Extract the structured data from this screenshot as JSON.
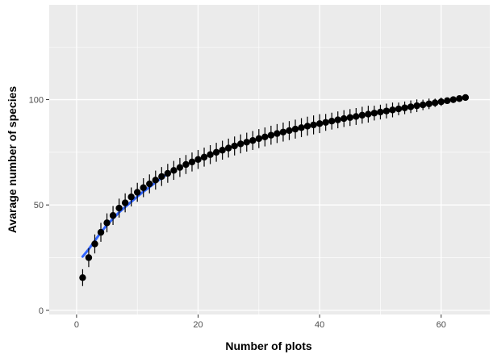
{
  "chart_data": {
    "type": "scatter",
    "title": "",
    "xlabel": "Number of plots",
    "ylabel": "Avarage number of species",
    "xlim": [
      -4.5,
      68
    ],
    "ylim": [
      -2,
      145
    ],
    "x_ticks": [
      0,
      20,
      40,
      60
    ],
    "x_tick_labels": [
      "0",
      "20",
      "40",
      "60"
    ],
    "y_ticks": [
      0,
      50,
      100
    ],
    "y_tick_labels": [
      "0",
      "50",
      "100"
    ],
    "grid": true,
    "legend": "none",
    "series": [
      {
        "kind": "points_with_error_bars",
        "x": [
          1,
          2,
          3,
          4,
          5,
          6,
          7,
          8,
          9,
          10,
          11,
          12,
          13,
          14,
          15,
          16,
          17,
          18,
          19,
          20,
          21,
          22,
          23,
          24,
          25,
          26,
          27,
          28,
          29,
          30,
          31,
          32,
          33,
          34,
          35,
          36,
          37,
          38,
          39,
          40,
          41,
          42,
          43,
          44,
          45,
          46,
          47,
          48,
          49,
          50,
          51,
          52,
          53,
          54,
          55,
          56,
          57,
          58,
          59,
          60,
          61,
          62,
          63,
          64
        ],
        "y": [
          15.5,
          25,
          31.5,
          37,
          41.5,
          45,
          48.5,
          51,
          53.8,
          56,
          58.2,
          60,
          61.8,
          63.5,
          65,
          66.4,
          67.8,
          69.2,
          70.4,
          71.6,
          72.7,
          73.9,
          75,
          76,
          77,
          78,
          79,
          79.8,
          80.6,
          81.5,
          82.3,
          83.1,
          83.9,
          84.6,
          85.3,
          86,
          86.7,
          87.4,
          88,
          88.6,
          89.2,
          89.8,
          90.4,
          91,
          91.5,
          92,
          92.6,
          93.1,
          93.6,
          94.1,
          94.6,
          95.1,
          95.6,
          96.1,
          96.6,
          97.1,
          97.5,
          98,
          98.5,
          99,
          99.5,
          100,
          100.5,
          101
        ],
        "error": [
          4,
          4.5,
          4.5,
          4.5,
          4.5,
          4.5,
          4.5,
          4.5,
          4.5,
          4.5,
          4.5,
          4.5,
          4.5,
          4.5,
          4.5,
          4.5,
          4.5,
          4.5,
          4.5,
          4.5,
          4.5,
          4.5,
          4.5,
          4.5,
          4.5,
          4.5,
          4.5,
          4.5,
          4.5,
          4.5,
          4.5,
          4.5,
          4.5,
          4.5,
          4.5,
          4.5,
          4.5,
          4.5,
          4.5,
          4.5,
          4,
          4,
          4,
          4,
          4,
          4,
          4,
          4,
          3.5,
          3.5,
          3.5,
          3.5,
          3,
          3,
          3,
          3,
          2.5,
          2.5,
          2,
          2,
          1.5,
          1.5,
          1,
          1
        ]
      },
      {
        "kind": "fitted_curve",
        "x": [
          1,
          2,
          3,
          4,
          5,
          6,
          7,
          8,
          9,
          10,
          11,
          12,
          13,
          14,
          15
        ],
        "y": [
          25.5,
          29,
          33,
          37,
          40.5,
          43.5,
          46.5,
          49,
          51.5,
          54,
          56.3,
          58.5,
          60.7,
          62.8,
          64.8
        ]
      }
    ],
    "colors": {
      "panel_background": "#ebebeb",
      "grid": "#ffffff",
      "points": "#000000",
      "fit_line": "#3366ff"
    }
  }
}
